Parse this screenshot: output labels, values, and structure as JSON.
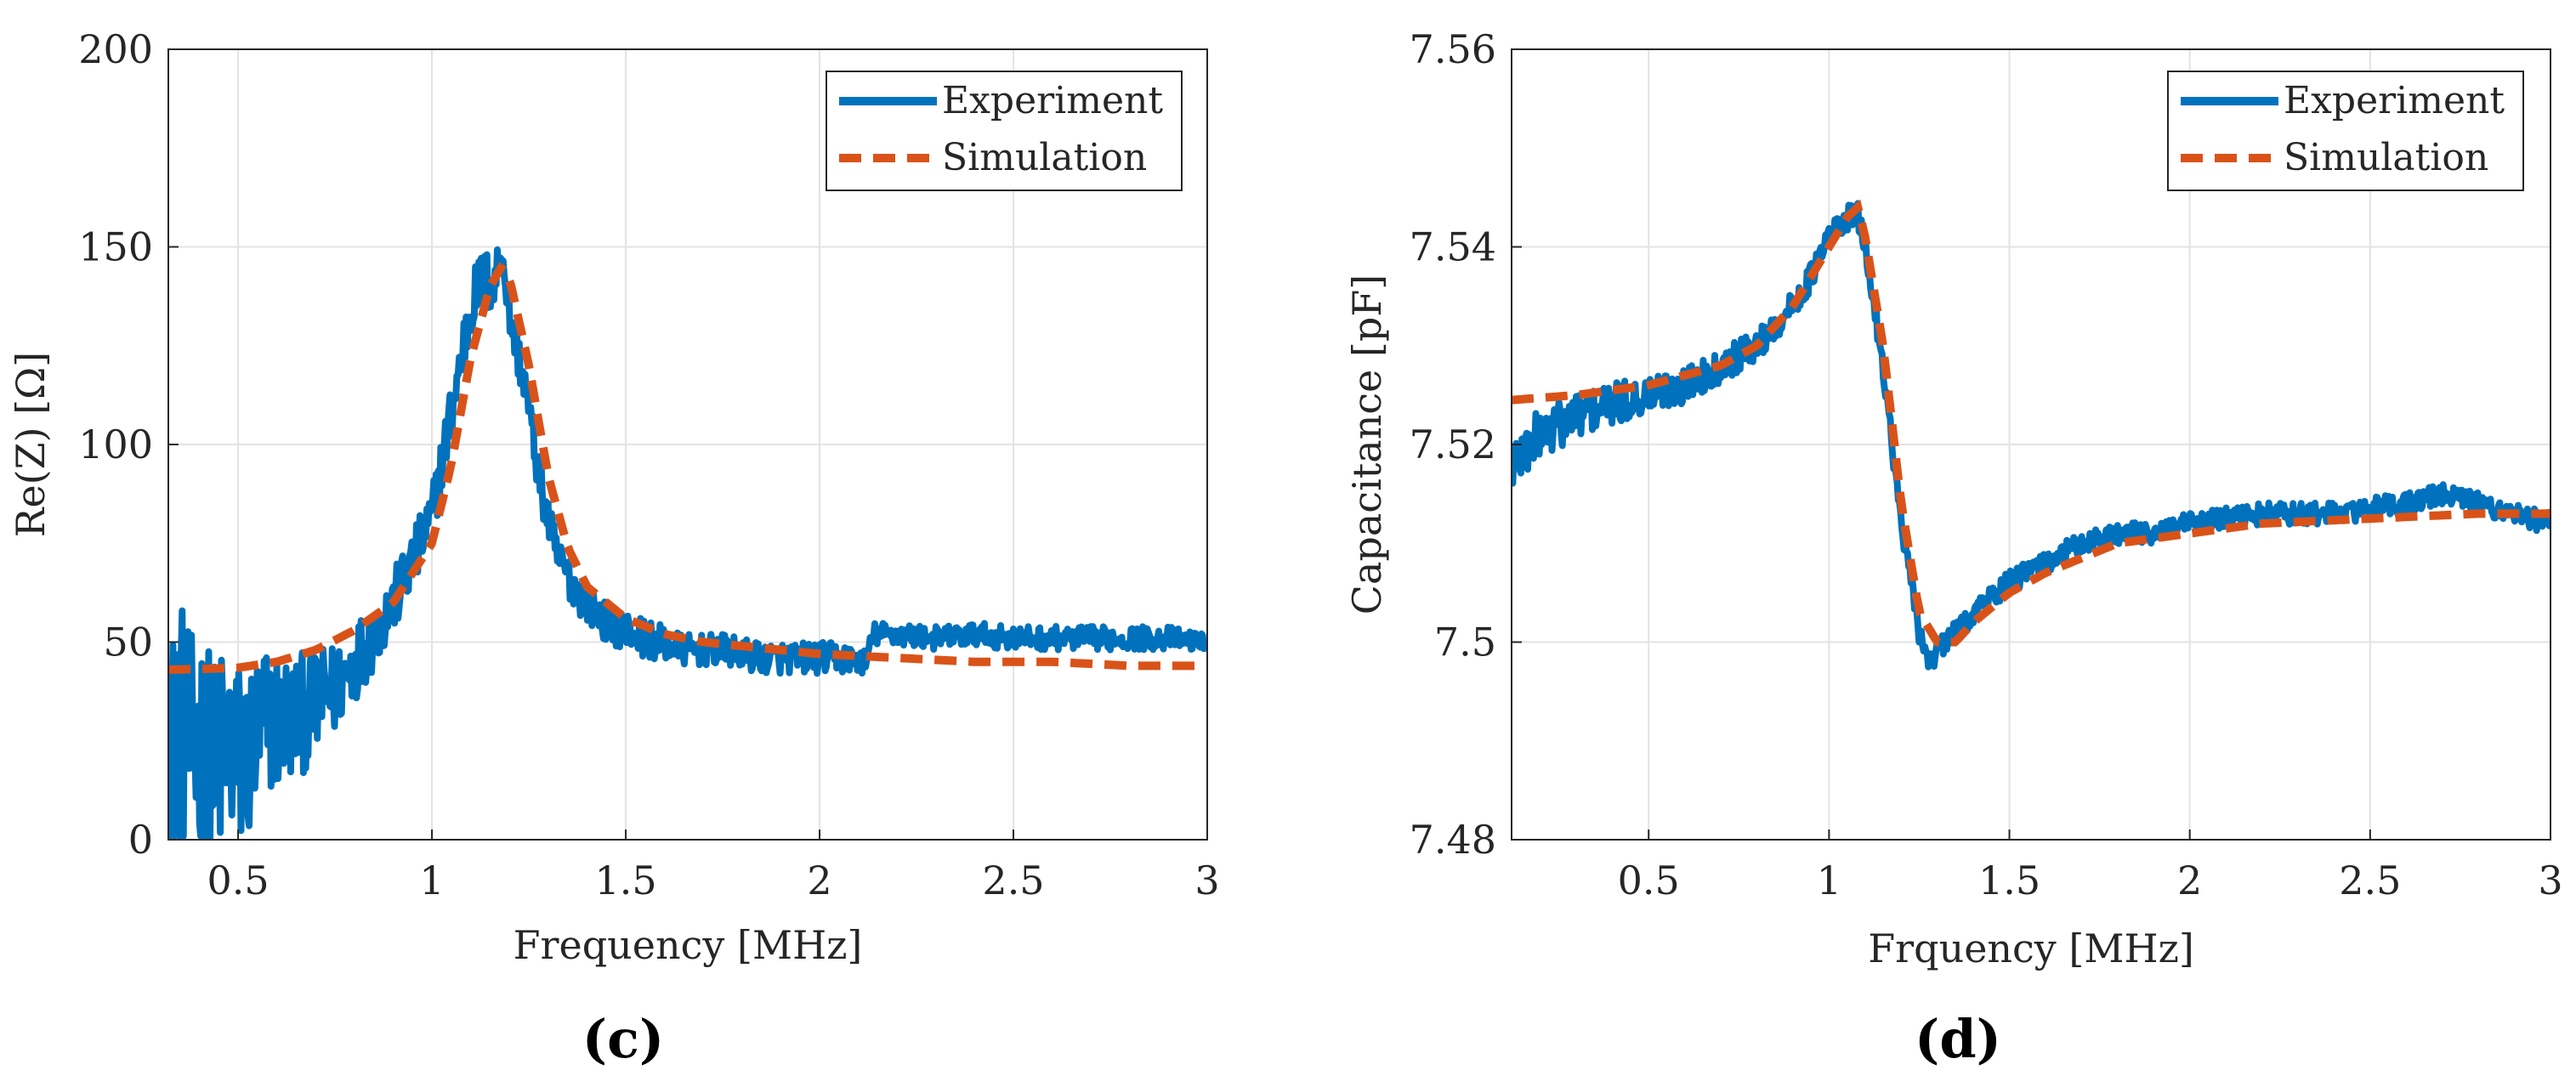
{
  "figure": {
    "panel_labels": [
      "(c)",
      "(d)"
    ]
  },
  "colors": {
    "experiment": "#0072BD",
    "simulation": "#D95319",
    "grid": "#e3e3e3",
    "axis": "#262626"
  },
  "chart_data": [
    {
      "type": "line",
      "panel": "(c)",
      "title": "",
      "xlabel": "Frequency [MHz]",
      "ylabel": "Re(Z) [Ω]",
      "xlim": [
        0.32,
        3.0
      ],
      "ylim": [
        0,
        200
      ],
      "xticks": [
        0.5,
        1,
        1.5,
        2,
        2.5,
        3
      ],
      "xtick_labels": [
        "0.5",
        "1",
        "1.5",
        "2",
        "2.5",
        "3"
      ],
      "yticks": [
        0,
        50,
        100,
        150,
        200
      ],
      "ytick_labels": [
        "0",
        "50",
        "100",
        "150",
        "200"
      ],
      "grid": true,
      "legend_position": "top-right",
      "series": [
        {
          "name": "Experiment",
          "style": "solid",
          "x": [
            0.32,
            0.35,
            0.38,
            0.41,
            0.44,
            0.47,
            0.5,
            0.53,
            0.56,
            0.6,
            0.65,
            0.7,
            0.75,
            0.8,
            0.85,
            0.9,
            0.95,
            1.0,
            1.05,
            1.1,
            1.13,
            1.16,
            1.18,
            1.2,
            1.24,
            1.28,
            1.32,
            1.38,
            1.45,
            1.55,
            1.65,
            1.75,
            1.85,
            1.95,
            2.05,
            2.12,
            2.14,
            2.2,
            2.3,
            2.4,
            2.5,
            2.6,
            2.7,
            2.8,
            2.9,
            3.0
          ],
          "values": [
            20,
            30,
            22,
            25,
            18,
            24,
            20,
            22,
            28,
            30,
            31,
            34,
            38,
            45,
            52,
            60,
            70,
            82,
            108,
            135,
            142,
            140,
            150,
            133,
            115,
            90,
            72,
            62,
            55,
            51,
            48,
            48,
            46,
            46,
            46,
            45,
            52,
            52,
            51,
            52,
            51,
            51,
            51,
            51,
            51,
            50
          ],
          "noise_amplitude": [
            30,
            32,
            30,
            28,
            28,
            28,
            26,
            24,
            22,
            18,
            16,
            14,
            12,
            10,
            9,
            8,
            8,
            7,
            8,
            8,
            8,
            8,
            6,
            6,
            6,
            6,
            6,
            5,
            5,
            5,
            4,
            4,
            4,
            4,
            4,
            3,
            3,
            3,
            3,
            3,
            3,
            3,
            3,
            3,
            3,
            2
          ]
        },
        {
          "name": "Simulation",
          "style": "dashed",
          "x": [
            0.32,
            0.4,
            0.5,
            0.6,
            0.7,
            0.8,
            0.9,
            1.0,
            1.05,
            1.1,
            1.15,
            1.18,
            1.2,
            1.25,
            1.3,
            1.35,
            1.4,
            1.5,
            1.6,
            1.7,
            1.8,
            1.9,
            2.0,
            2.2,
            2.4,
            2.6,
            2.8,
            3.0
          ],
          "values": [
            43,
            43.2,
            43.5,
            45,
            48,
            53,
            60,
            75,
            95,
            122,
            140,
            145,
            142,
            120,
            92,
            74,
            64,
            56,
            52,
            50,
            49,
            48,
            47,
            46,
            45,
            45,
            44,
            44
          ]
        }
      ]
    },
    {
      "type": "line",
      "panel": "(d)",
      "title": "",
      "xlabel": "Frquency [MHz]",
      "ylabel": "Capacitance [pF]",
      "xlim": [
        0.12,
        3.0
      ],
      "ylim": [
        7.48,
        7.56
      ],
      "xticks": [
        0.5,
        1,
        1.5,
        2,
        2.5,
        3
      ],
      "xtick_labels": [
        "0.5",
        "1",
        "1.5",
        "2",
        "2.5",
        "3"
      ],
      "yticks": [
        7.48,
        7.5,
        7.52,
        7.54,
        7.56
      ],
      "ytick_labels": [
        "7.48",
        "7.5",
        "7.52",
        "7.54",
        "7.56"
      ],
      "grid": true,
      "legend_position": "top-right",
      "series": [
        {
          "name": "Experiment",
          "style": "solid",
          "x": [
            0.12,
            0.2,
            0.3,
            0.4,
            0.5,
            0.6,
            0.7,
            0.8,
            0.9,
            0.95,
            1.0,
            1.05,
            1.08,
            1.1,
            1.15,
            1.2,
            1.25,
            1.28,
            1.3,
            1.35,
            1.4,
            1.5,
            1.6,
            1.7,
            1.8,
            1.9,
            2.0,
            2.2,
            2.4,
            2.6,
            2.7,
            2.8,
            3.0
          ],
          "values": [
            7.518,
            7.521,
            7.523,
            7.524,
            7.525,
            7.526,
            7.528,
            7.53,
            7.534,
            7.537,
            7.541,
            7.543,
            7.543,
            7.54,
            7.528,
            7.512,
            7.501,
            7.498,
            7.499,
            7.501,
            7.503,
            7.506,
            7.508,
            7.51,
            7.511,
            7.511,
            7.512,
            7.513,
            7.513,
            7.514,
            7.515,
            7.514,
            7.512
          ],
          "noise_amplitude": [
            0.003,
            0.0026,
            0.0024,
            0.0022,
            0.002,
            0.0018,
            0.0017,
            0.0016,
            0.0015,
            0.0014,
            0.0014,
            0.0014,
            0.0014,
            0.0012,
            0.0012,
            0.0012,
            0.0012,
            0.0012,
            0.0012,
            0.0012,
            0.0012,
            0.0012,
            0.0012,
            0.0011,
            0.0011,
            0.0011,
            0.0011,
            0.0011,
            0.0011,
            0.0011,
            0.0011,
            0.0011,
            0.0011
          ]
        },
        {
          "name": "Simulation",
          "style": "dashed",
          "x": [
            0.12,
            0.3,
            0.5,
            0.7,
            0.8,
            0.9,
            1.0,
            1.05,
            1.08,
            1.1,
            1.15,
            1.2,
            1.25,
            1.3,
            1.35,
            1.4,
            1.5,
            1.6,
            1.8,
            2.0,
            2.2,
            2.5,
            2.8,
            3.0
          ],
          "values": [
            7.5245,
            7.525,
            7.526,
            7.528,
            7.53,
            7.534,
            7.54,
            7.543,
            7.544,
            7.541,
            7.53,
            7.514,
            7.503,
            7.5,
            7.5,
            7.502,
            7.505,
            7.507,
            7.51,
            7.511,
            7.512,
            7.5125,
            7.513,
            7.513
          ]
        }
      ]
    }
  ]
}
